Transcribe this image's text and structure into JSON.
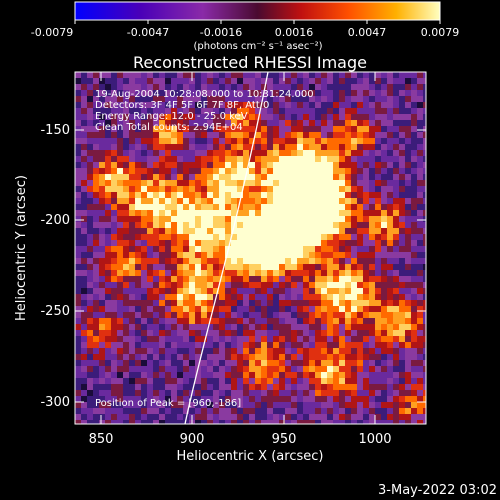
{
  "colorbar": {
    "tick_labels": [
      "-0.0079",
      "-0.0047",
      "-0.0016",
      "0.0016",
      "0.0047",
      "0.0079"
    ],
    "unit_label": "(photons cm⁻² s⁻¹ asec⁻²)",
    "range": [
      -0.0079,
      0.0079
    ]
  },
  "plot": {
    "title": "Reconstructed RHESSI Image",
    "xlabel": "Heliocentric X (arcsec)",
    "ylabel": "Heliocentric Y (arcsec)",
    "x_ticks": [
      "850",
      "900",
      "950",
      "1000"
    ],
    "y_ticks": [
      "-150",
      "-200",
      "-250",
      "-300"
    ],
    "x_range": [
      835,
      1027
    ],
    "y_range": [
      -311,
      -114
    ]
  },
  "annotations": {
    "time_range": "19-Aug-2004 10:28:08.000 to 10:31:24.000",
    "detectors": "Detectors: 3F 4F 5F 6F 7F 8F, Att 0",
    "energy_range": "Energy Range: 12.0 - 25.0 keV",
    "method": "Clean     Total counts: 2.94E+04",
    "peak": "Position of Peak = [960,-186]"
  },
  "footer": {
    "date": "3-May-2022 03:02"
  }
}
